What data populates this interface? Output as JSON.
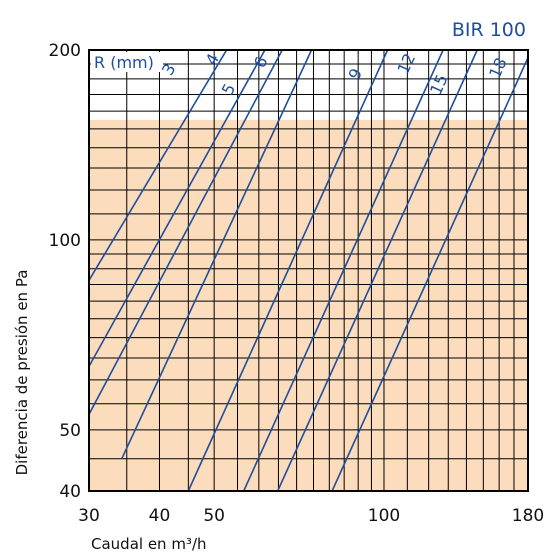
{
  "product_label": "BIR 100",
  "colors": {
    "accent": "#1f4e9c",
    "shade": "#fbdcbc",
    "grid": "#000000"
  },
  "chart_data": {
    "type": "line",
    "title": "",
    "xlabel": "Caudal en m³/h",
    "ylabel": "Diferencia de presión en Pa",
    "xscale": "log",
    "yscale": "log",
    "xlim": [
      30,
      180
    ],
    "ylim": [
      40,
      200
    ],
    "x_ticks": [
      30,
      40,
      50,
      100,
      180
    ],
    "y_ticks": [
      40,
      50,
      100,
      200
    ],
    "x_grid": [
      30,
      35,
      40,
      45,
      50,
      55,
      60,
      65,
      70,
      75,
      80,
      85,
      90,
      95,
      100,
      110,
      120,
      130,
      140,
      150,
      160,
      170,
      180
    ],
    "y_grid": [
      40,
      45,
      50,
      55,
      60,
      65,
      70,
      75,
      80,
      85,
      90,
      95,
      100,
      110,
      120,
      130,
      140,
      150,
      160,
      170,
      180,
      190,
      200
    ],
    "shaded_region": {
      "y_max": 155
    },
    "legend_title": "R (mm)",
    "series": [
      {
        "name": "3",
        "x": [
          29.7,
          52.6
        ],
        "y": [
          85,
          200
        ],
        "label_at": [
          41.7,
          186
        ]
      },
      {
        "name": "4",
        "x": [
          29.7,
          61.5
        ],
        "y": [
          62,
          200
        ],
        "label_at": [
          49.8,
          193
        ]
      },
      {
        "name": "5",
        "x": [
          29.7,
          66.0
        ],
        "y": [
          52,
          200
        ],
        "label_at": [
          53.2,
          173
        ]
      },
      {
        "name": "6",
        "x": [
          34.3,
          74.4
        ],
        "y": [
          45,
          200
        ],
        "label_at": [
          60.7,
          191
        ]
      },
      {
        "name": "9",
        "x": [
          45.0,
          101.5
        ],
        "y": [
          40,
          200
        ],
        "label_at": [
          89.3,
          183
        ]
      },
      {
        "name": "12",
        "x": [
          56.4,
          127.3
        ],
        "y": [
          40,
          200
        ],
        "label_at": [
          110.0,
          190
        ]
      },
      {
        "name": "15",
        "x": [
          64.8,
          146.3
        ],
        "y": [
          40,
          200
        ],
        "label_at": [
          125.6,
          176
        ]
      },
      {
        "name": "18",
        "x": [
          80.9,
          182.6
        ],
        "y": [
          40,
          200
        ],
        "label_at": [
          159.8,
          187
        ]
      }
    ]
  }
}
